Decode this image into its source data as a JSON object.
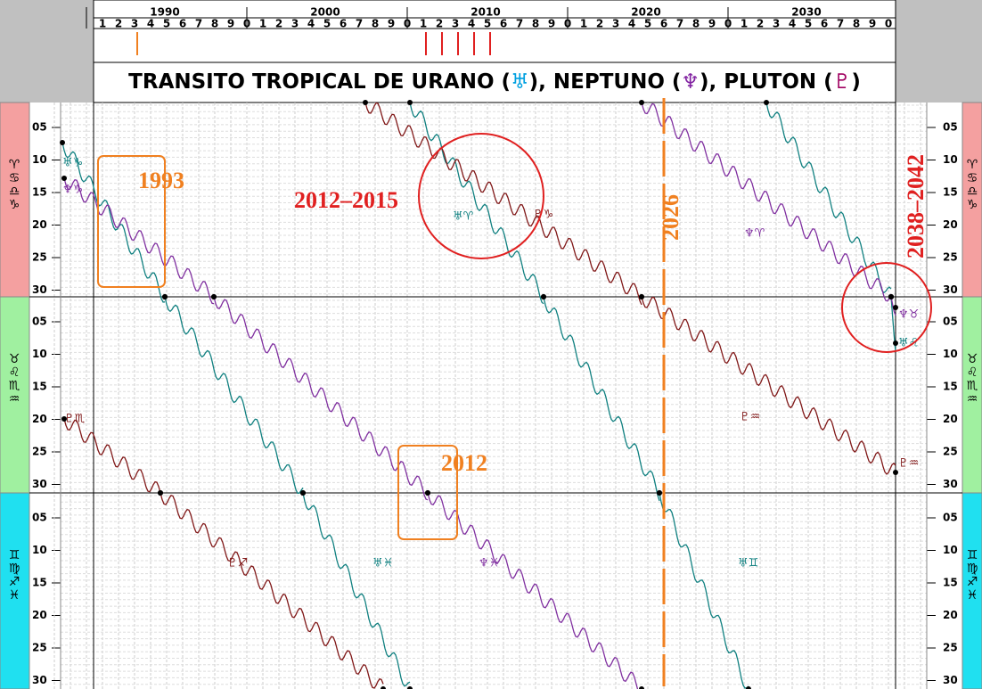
{
  "header": {
    "decades": [
      "1990",
      "2000",
      "2010",
      "2020",
      "2030"
    ],
    "digits": [
      "1",
      "2",
      "3",
      "4",
      "5",
      "6",
      "7",
      "8",
      "9",
      "0",
      "1",
      "2",
      "3",
      "4",
      "5",
      "6",
      "7",
      "8",
      "9",
      "0",
      "1",
      "2",
      "3",
      "4",
      "5",
      "6",
      "7",
      "8",
      "9",
      "0",
      "1",
      "2",
      "3",
      "4",
      "5",
      "6",
      "7",
      "8",
      "9",
      "0",
      "1",
      "2",
      "3",
      "4",
      "5",
      "6",
      "7",
      "8",
      "9",
      "0"
    ],
    "title": {
      "prefix": "TRANSITO TROPICAL DE URANO (",
      "uranus": "♅",
      "mid1": "), NEPTUNO (",
      "neptune": "♆",
      "mid2": "), PLUTON (",
      "pluto": "♇",
      "suffix": ")"
    }
  },
  "bands": [
    {
      "signs": [
        "♈",
        "♋",
        "♎",
        "♑"
      ]
    },
    {
      "signs": [
        "♉",
        "♌",
        "♏",
        "♒"
      ]
    },
    {
      "signs": [
        "♊",
        "♍",
        "♐",
        "♓"
      ]
    }
  ],
  "degree_labels": [
    "05",
    "10",
    "15",
    "20",
    "25",
    "30"
  ],
  "labels": [
    {
      "text": "♅♑"
    },
    {
      "text": "♆♑"
    },
    {
      "text": "♅♈"
    },
    {
      "text": "♇♑"
    },
    {
      "text": "♆♈"
    },
    {
      "text": "♆♉"
    },
    {
      "text": "♅♌"
    },
    {
      "text": "♇♏"
    },
    {
      "text": "♇♒"
    },
    {
      "text": "♇♒"
    },
    {
      "text": "♇♐"
    },
    {
      "text": "♅♓"
    },
    {
      "text": "♆♓"
    },
    {
      "text": "♅♊"
    }
  ],
  "annotations": {
    "a1993": "1993",
    "a2012_2015": "2012–2015",
    "a2026": "2026",
    "a2038": "2038–2042",
    "a2012": "2012"
  }
}
